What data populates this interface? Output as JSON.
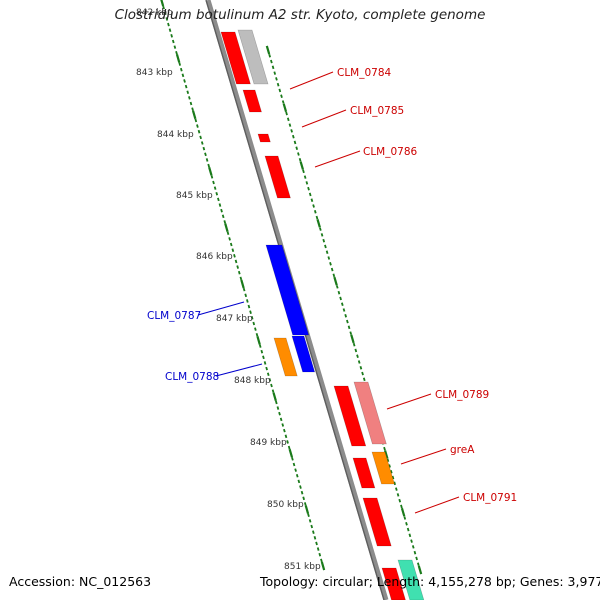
{
  "title": "Clostridium botulinum A2 str. Kyoto, complete genome",
  "footer": {
    "accession": "Accession: NC_012563",
    "stats": "Topology: circular; Length: 4,155,278 bp; Genes: 3,977"
  },
  "colors": {
    "backbone": "#8c8c8c",
    "tick": "#1a7a1a",
    "red_gene": "#ff0000",
    "blue_gene": "#0000ff",
    "orange_gene": "#ff8c00",
    "pink_gene": "#f08080",
    "grey_gene": "#bdbdbd",
    "teal_gene": "#40e0b0",
    "red_label": "#cc0000",
    "blue_label": "#0000cc"
  },
  "scale_labels": [
    "842 kbp",
    "843 kbp",
    "844 kbp",
    "845 kbp",
    "846 kbp",
    "847 kbp",
    "848 kbp",
    "849 kbp",
    "850 kbp",
    "851 kbp"
  ],
  "gene_labels": [
    {
      "text": "CLM_0784",
      "color": "red"
    },
    {
      "text": "CLM_0785",
      "color": "red"
    },
    {
      "text": "CLM_0786",
      "color": "red"
    },
    {
      "text": "CLM_0787",
      "color": "blue"
    },
    {
      "text": "CLM_0788",
      "color": "blue"
    },
    {
      "text": "CLM_0789",
      "color": "red"
    },
    {
      "text": "greA",
      "color": "red"
    },
    {
      "text": "CLM_0791",
      "color": "red"
    }
  ]
}
